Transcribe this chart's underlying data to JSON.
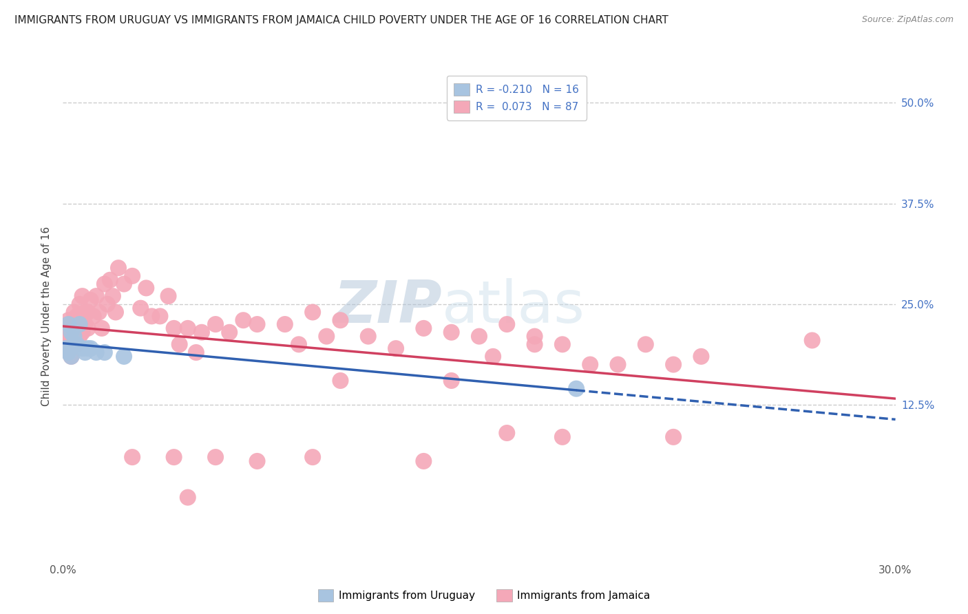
{
  "title": "IMMIGRANTS FROM URUGUAY VS IMMIGRANTS FROM JAMAICA CHILD POVERTY UNDER THE AGE OF 16 CORRELATION CHART",
  "source": "Source: ZipAtlas.com",
  "ylabel": "Child Poverty Under the Age of 16",
  "ytick_labels": [
    "50.0%",
    "37.5%",
    "25.0%",
    "12.5%"
  ],
  "ytick_values": [
    0.5,
    0.375,
    0.25,
    0.125
  ],
  "xmin": 0.0,
  "xmax": 0.3,
  "ymin": -0.07,
  "ymax": 0.54,
  "watermark_zip": "ZIP",
  "watermark_atlas": "atlas",
  "uruguay_color": "#a8c4e0",
  "jamaica_color": "#f4a8b8",
  "uruguay_line_color": "#3060b0",
  "jamaica_line_color": "#d04060",
  "R_uruguay": -0.21,
  "N_uruguay": 16,
  "R_jamaica": 0.073,
  "N_jamaica": 87,
  "background_color": "#ffffff",
  "grid_color": "#cccccc",
  "title_fontsize": 11,
  "tick_fontsize": 11,
  "right_tick_color": "#4472c4",
  "legend_label_color": "#4472c4",
  "legend_text_color": "#333333",
  "uruguay_x": [
    0.001,
    0.002,
    0.002,
    0.003,
    0.003,
    0.004,
    0.005,
    0.006,
    0.007,
    0.008,
    0.009,
    0.01,
    0.012,
    0.015,
    0.022,
    0.185
  ],
  "uruguay_y": [
    0.195,
    0.225,
    0.19,
    0.215,
    0.185,
    0.21,
    0.2,
    0.225,
    0.195,
    0.19,
    0.195,
    0.195,
    0.19,
    0.19,
    0.185,
    0.145
  ],
  "jamaica_x": [
    0.001,
    0.001,
    0.001,
    0.002,
    0.002,
    0.002,
    0.002,
    0.003,
    0.003,
    0.003,
    0.003,
    0.004,
    0.004,
    0.004,
    0.005,
    0.005,
    0.005,
    0.006,
    0.006,
    0.006,
    0.007,
    0.007,
    0.007,
    0.008,
    0.008,
    0.009,
    0.009,
    0.01,
    0.011,
    0.012,
    0.013,
    0.014,
    0.015,
    0.016,
    0.017,
    0.018,
    0.019,
    0.02,
    0.022,
    0.025,
    0.028,
    0.03,
    0.032,
    0.035,
    0.038,
    0.04,
    0.042,
    0.045,
    0.048,
    0.05,
    0.055,
    0.06,
    0.065,
    0.07,
    0.08,
    0.085,
    0.09,
    0.095,
    0.1,
    0.11,
    0.12,
    0.13,
    0.14,
    0.15,
    0.16,
    0.17,
    0.14,
    0.155,
    0.17,
    0.18,
    0.19,
    0.2,
    0.21,
    0.22,
    0.23,
    0.16,
    0.18,
    0.22,
    0.1,
    0.055,
    0.025,
    0.04,
    0.07,
    0.09,
    0.13,
    0.045,
    0.27
  ],
  "jamaica_y": [
    0.215,
    0.22,
    0.195,
    0.225,
    0.21,
    0.23,
    0.195,
    0.215,
    0.205,
    0.225,
    0.185,
    0.24,
    0.215,
    0.2,
    0.235,
    0.215,
    0.2,
    0.25,
    0.225,
    0.21,
    0.26,
    0.235,
    0.215,
    0.24,
    0.225,
    0.24,
    0.22,
    0.255,
    0.235,
    0.26,
    0.24,
    0.22,
    0.275,
    0.25,
    0.28,
    0.26,
    0.24,
    0.295,
    0.275,
    0.285,
    0.245,
    0.27,
    0.235,
    0.235,
    0.26,
    0.22,
    0.2,
    0.22,
    0.19,
    0.215,
    0.225,
    0.215,
    0.23,
    0.225,
    0.225,
    0.2,
    0.24,
    0.21,
    0.23,
    0.21,
    0.195,
    0.22,
    0.215,
    0.21,
    0.225,
    0.21,
    0.155,
    0.185,
    0.2,
    0.2,
    0.175,
    0.175,
    0.2,
    0.175,
    0.185,
    0.09,
    0.085,
    0.085,
    0.155,
    0.06,
    0.06,
    0.06,
    0.055,
    0.06,
    0.055,
    0.01,
    0.205
  ]
}
